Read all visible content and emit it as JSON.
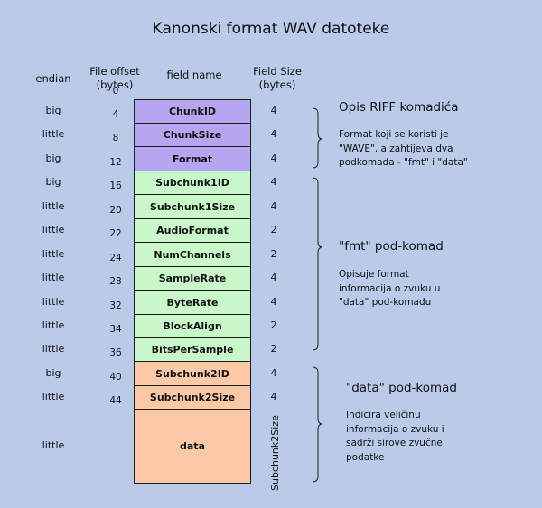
{
  "title": "Kanonski format WAV datoteke",
  "headers": {
    "endian": "endian",
    "offset_line1": "File offset",
    "offset_line2": "(bytes)",
    "field_name": "field name",
    "size_line1": "Field Size",
    "size_line2": "(bytes)"
  },
  "fields": [
    {
      "name": "ChunkID",
      "endian": "big",
      "offset": "0",
      "size": "4",
      "group": "riff"
    },
    {
      "name": "ChunkSize",
      "endian": "little",
      "offset": "4",
      "size": "4",
      "group": "riff"
    },
    {
      "name": "Format",
      "endian": "big",
      "offset": "8",
      "size": "4",
      "group": "riff"
    },
    {
      "name": "Subchunk1ID",
      "endian": "big",
      "offset": "12",
      "size": "4",
      "group": "fmt"
    },
    {
      "name": "Subchunk1Size",
      "endian": "little",
      "offset": "16",
      "size": "4",
      "group": "fmt"
    },
    {
      "name": "AudioFormat",
      "endian": "little",
      "offset": "20",
      "size": "2",
      "group": "fmt"
    },
    {
      "name": "NumChannels",
      "endian": "little",
      "offset": "22",
      "size": "2",
      "group": "fmt"
    },
    {
      "name": "SampleRate",
      "endian": "little",
      "offset": "24",
      "size": "4",
      "group": "fmt"
    },
    {
      "name": "ByteRate",
      "endian": "little",
      "offset": "28",
      "size": "4",
      "group": "fmt"
    },
    {
      "name": "BlockAlign",
      "endian": "little",
      "offset": "32",
      "size": "2",
      "group": "fmt"
    },
    {
      "name": "BitsPerSample",
      "endian": "little",
      "offset": "34",
      "size": "2",
      "group": "fmt"
    },
    {
      "name": "Subchunk2ID",
      "endian": "big",
      "offset": "36",
      "size": "4",
      "group": "data"
    },
    {
      "name": "Subchunk2Size",
      "endian": "little",
      "offset": "40",
      "size": "4",
      "group": "data"
    },
    {
      "name": "data",
      "endian": "little",
      "offset": "44",
      "size": "Subchunk2Size",
      "group": "data"
    }
  ],
  "groups": {
    "riff": {
      "heading": "Opis RIFF komadića",
      "lines": [
        "Format koji se koristi je",
        "\"WAVE\", a zahtijeva dva",
        "podkomada - \"fmt\" i \"data\""
      ]
    },
    "fmt": {
      "heading": "\"fmt\" pod-komad",
      "lines": [
        "Opisuje format",
        "informacija o zvuku u",
        "\"data\" pod-komadu"
      ]
    },
    "data": {
      "heading": "\"data\" pod-komad",
      "lines": [
        "Indicira veličinu",
        "informacija o zvuku i",
        "sadrži sirove zvučne",
        "podatke"
      ]
    }
  },
  "colors": {
    "background": "#b9cbe9",
    "riff": "#b5a6f1",
    "fmt": "#c9f7c9",
    "data": "#fbc9a8"
  }
}
